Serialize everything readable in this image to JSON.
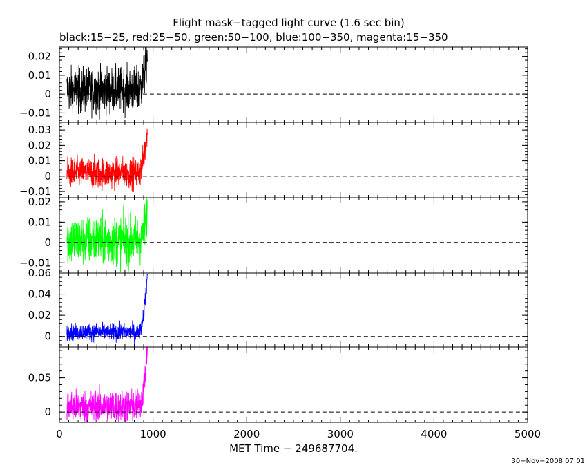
{
  "chart_data": {
    "type": "line",
    "title": "Flight mask−tagged light curve (1.6 sec bin)",
    "subtitle": "black:15−25, red:25−50, green:50−100, blue:100−350, magenta:15−350",
    "xlabel": "MET Time − 249687704.",
    "timestamp": "30−Nov−2008 07:01",
    "xlim": [
      0,
      5000
    ],
    "x_ticks": [
      0,
      1000,
      2000,
      3000,
      4000,
      5000
    ],
    "x_tick_labels": [
      "0",
      "1000",
      "2000",
      "3000",
      "4000",
      "5000"
    ],
    "data_x_range": [
      80,
      940
    ],
    "baseline": 0,
    "grid": false,
    "panels": [
      {
        "name": "black:15−25",
        "color": "#000000",
        "ylim": [
          -0.015,
          0.025
        ],
        "y_ticks": [
          -0.01,
          0,
          0.01,
          0.02
        ],
        "y_tick_labels": [
          "−0.01",
          "0",
          "0.01",
          "0.02"
        ],
        "noise_sigma": 0.006,
        "mean": 0.002,
        "rise": 0.02
      },
      {
        "name": "red:25−50",
        "color": "#ff0000",
        "ylim": [
          -0.014,
          0.035
        ],
        "y_ticks": [
          -0.01,
          0,
          0.01,
          0.02,
          0.03
        ],
        "y_tick_labels": [
          "−0.01",
          "0",
          "0.01",
          "0.02",
          "0.03"
        ],
        "noise_sigma": 0.005,
        "mean": 0.002,
        "rise": 0.03
      },
      {
        "name": "green:50−100",
        "color": "#00ff00",
        "ylim": [
          -0.015,
          0.022
        ],
        "y_ticks": [
          -0.01,
          0,
          0.01,
          0.02
        ],
        "y_tick_labels": [
          "−0.01",
          "0",
          "0.01",
          "0.02"
        ],
        "noise_sigma": 0.006,
        "mean": 0.001,
        "rise": 0.015
      },
      {
        "name": "blue:100−350",
        "color": "#0000ff",
        "ylim": [
          -0.01,
          0.06
        ],
        "y_ticks": [
          0,
          0.02,
          0.04,
          0.06
        ],
        "y_tick_labels": [
          "0",
          "0.02",
          "0.04",
          "0.06"
        ],
        "noise_sigma": 0.004,
        "mean": 0.004,
        "rise": 0.055
      },
      {
        "name": "magenta:15−350",
        "color": "#ff00ff",
        "ylim": [
          -0.015,
          0.095
        ],
        "y_ticks": [
          0,
          0.05
        ],
        "y_tick_labels": [
          "0",
          "0.05"
        ],
        "noise_sigma": 0.012,
        "mean": 0.008,
        "rise": 0.09
      }
    ]
  }
}
